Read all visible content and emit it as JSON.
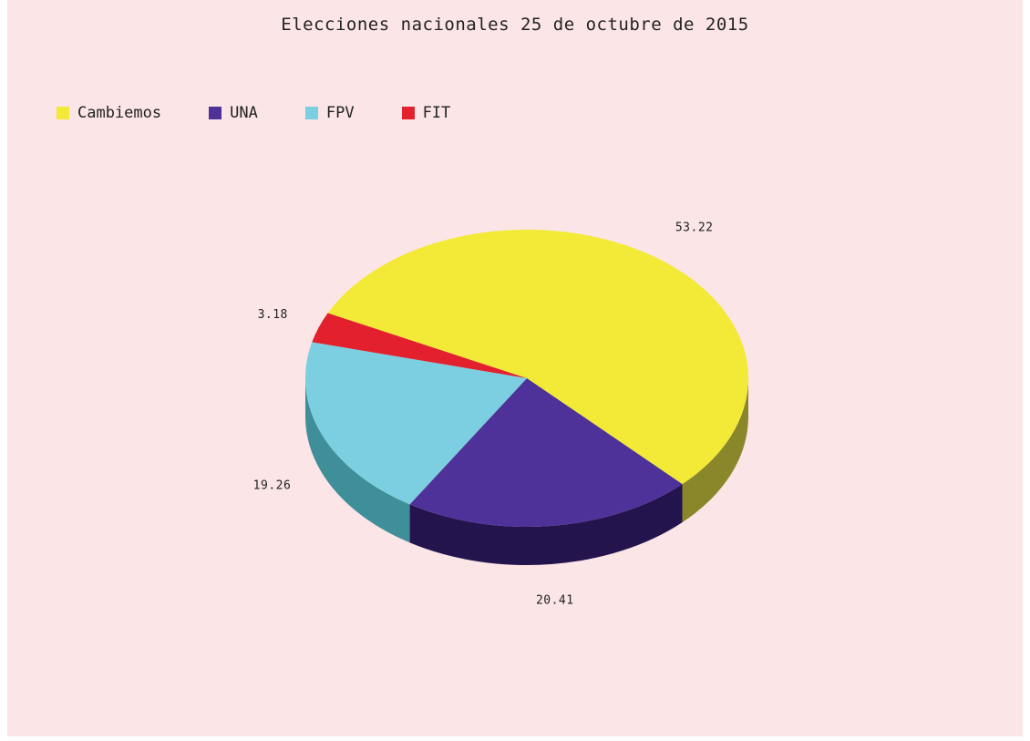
{
  "chart_data": {
    "type": "pie",
    "title": "Elecciones nacionales 25 de octubre de 2015",
    "legend_position": "top-left",
    "style": "3d",
    "slices": [
      {
        "label": "Cambiemos",
        "value": 53.22,
        "value_label": "53.22",
        "color": "#f2ea36",
        "side_color": "#8a862a"
      },
      {
        "label": "UNA",
        "value": 20.41,
        "value_label": "20.41",
        "color": "#4e3199",
        "side_color": "#24144e"
      },
      {
        "label": "FPV",
        "value": 19.26,
        "value_label": "19.26",
        "color": "#7bcfe0",
        "side_color": "#3f8f9a"
      },
      {
        "label": "FIT",
        "value": 3.18,
        "value_label": "3.18",
        "color": "#e2202e",
        "side_color": "#7a1016"
      }
    ]
  }
}
